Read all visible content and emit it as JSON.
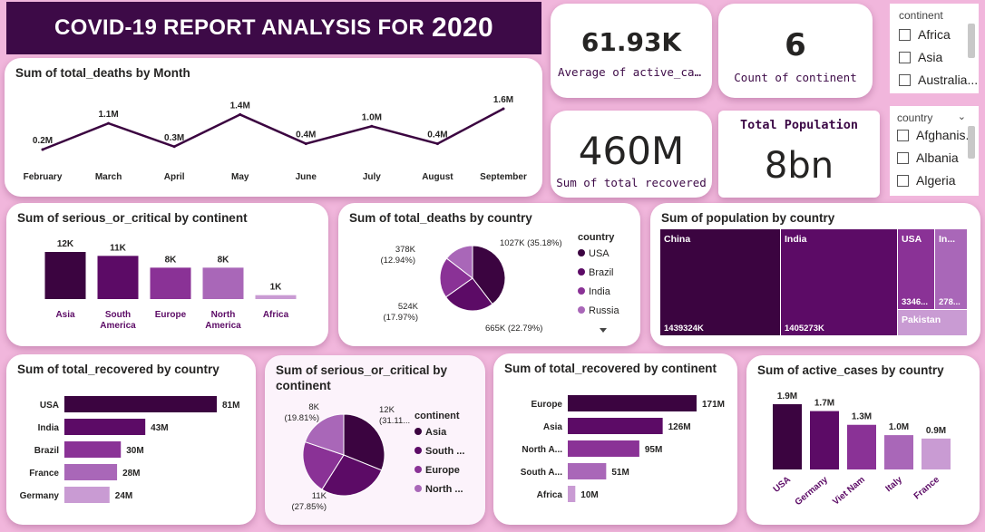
{
  "header": {
    "title": "COVID-19 REPORT ANALYSIS FOR",
    "year": "2020"
  },
  "kpis": {
    "avg_active": {
      "value": "61.93K",
      "label": "Average of active_ca..."
    },
    "count_continent": {
      "value": "6",
      "label": "Count of continent"
    },
    "total_recovered": {
      "value": "460M",
      "label": "Sum of total recovered"
    },
    "total_population": {
      "value": "8bn",
      "label": "Total Population"
    }
  },
  "slicers": {
    "continent": {
      "header": "continent",
      "items": [
        "Africa",
        "Asia",
        "Australia..."
      ]
    },
    "country": {
      "header": "country",
      "items": [
        "Afghanis...",
        "Albania",
        "Algeria"
      ]
    }
  },
  "colors": {
    "dark": "#3b0440",
    "c2": "#5c0b66",
    "c3": "#8a3296",
    "c4": "#a967b8",
    "c5": "#c99bd3",
    "banner": "#3d0a47"
  },
  "chart_data": [
    {
      "id": "deaths_by_month",
      "type": "line",
      "title": "Sum of total_deaths by Month",
      "categories": [
        "February",
        "March",
        "April",
        "May",
        "June",
        "July",
        "August",
        "September"
      ],
      "values": [
        0.2,
        1.1,
        0.3,
        1.4,
        0.4,
        1.0,
        0.4,
        1.6
      ],
      "labels": [
        "0.2M",
        "1.1M",
        "0.3M",
        "1.4M",
        "0.4M",
        "1.0M",
        "0.4M",
        "1.6M"
      ]
    },
    {
      "id": "critical_by_continent",
      "type": "bar",
      "title": "Sum of serious_or_critical by continent",
      "categories": [
        "Asia",
        "South America",
        "Europe",
        "North America",
        "Africa"
      ],
      "values": [
        12,
        11,
        8,
        8,
        1
      ],
      "labels": [
        "12K",
        "11K",
        "8K",
        "8K",
        "1K"
      ]
    },
    {
      "id": "deaths_by_country",
      "type": "pie",
      "title": "Sum of total_deaths by country",
      "legend_title": "country",
      "categories": [
        "USA",
        "Brazil",
        "India",
        "Russia"
      ],
      "values": [
        1027,
        665,
        524,
        378
      ],
      "labels": [
        "1027K (35.18%)",
        "665K (22.79%)",
        "524K (17.97%)",
        "378K (12.94%)"
      ]
    },
    {
      "id": "population_by_country",
      "type": "treemap",
      "title": "Sum of population by country",
      "categories": [
        "China",
        "India",
        "USA",
        "In...",
        "Pakistan"
      ],
      "values": [
        1439324,
        1405273,
        334600,
        278000,
        225000
      ],
      "labels": [
        "1439324K",
        "1405273K",
        "3346...",
        "278...",
        ""
      ]
    },
    {
      "id": "recovered_by_country",
      "type": "bar",
      "title": "Sum of total_recovered by country",
      "categories": [
        "USA",
        "India",
        "Brazil",
        "France",
        "Germany"
      ],
      "values": [
        81,
        43,
        30,
        28,
        24
      ],
      "labels": [
        "81M",
        "43M",
        "30M",
        "28M",
        "24M"
      ]
    },
    {
      "id": "critical_pie",
      "type": "pie",
      "title": "Sum of serious_or_critical by continent",
      "legend_title": "continent",
      "categories": [
        "Asia",
        "South ...",
        "Europe",
        "North ..."
      ],
      "values": [
        31.11,
        27.85,
        21.23,
        19.81
      ],
      "labels": [
        "12K (31.11...",
        "11K (27.85%)",
        "",
        "8K (19.81%)"
      ]
    },
    {
      "id": "recovered_by_continent",
      "type": "bar",
      "title": "Sum of total_recovered by continent",
      "categories": [
        "Europe",
        "Asia",
        "North A...",
        "South A...",
        "Africa"
      ],
      "values": [
        171,
        126,
        95,
        51,
        10
      ],
      "labels": [
        "171M",
        "126M",
        "95M",
        "51M",
        "10M"
      ]
    },
    {
      "id": "active_by_country",
      "type": "bar",
      "title": "Sum of active_cases by country",
      "categories": [
        "USA",
        "Germany",
        "Viet Nam",
        "Italy",
        "France"
      ],
      "values": [
        1.9,
        1.7,
        1.3,
        1.0,
        0.9
      ],
      "labels": [
        "1.9M",
        "1.7M",
        "1.3M",
        "1.0M",
        "0.9M"
      ]
    }
  ]
}
